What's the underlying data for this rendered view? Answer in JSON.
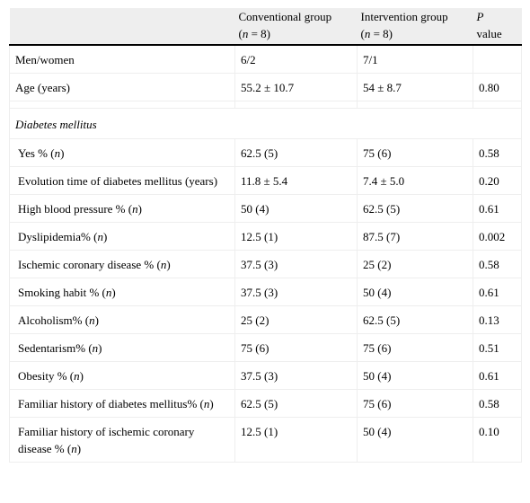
{
  "header": {
    "col2_line1": "Conventional group",
    "col2_n_pre": "(",
    "col2_n_var": "n",
    "col2_n_post": " = 8)",
    "col3_line1": "Intervention group",
    "col3_n_pre": "(",
    "col3_n_var": "n",
    "col3_n_post": " = 8)",
    "col4_p": "P",
    "col4_value": "value"
  },
  "rows": [
    {
      "label": "Men/women",
      "conv": "6/2",
      "interv": "7/1",
      "p": ""
    },
    {
      "label": "Age (years)",
      "conv": "55.2 ± 10.7",
      "interv": "54 ± 8.7",
      "p": "0.80"
    }
  ],
  "section_title": "Diabetes mellitus",
  "section_rows": [
    {
      "label": "Yes % (",
      "var": "n",
      "tail": ")",
      "conv": "62.5 (5)",
      "interv": "75 (6)",
      "p": "0.58"
    },
    {
      "label": "Evolution time of diabetes mellitus (years)",
      "var": "",
      "tail": "",
      "conv": "11.8 ± 5.4",
      "interv": "7.4 ± 5.0",
      "p": "0.20"
    },
    {
      "label": "High blood pressure % (",
      "var": "n",
      "tail": ")",
      "conv": "50 (4)",
      "interv": "62.5 (5)",
      "p": "0.61"
    },
    {
      "label": "Dyslipidemia% (",
      "var": "n",
      "tail": ")",
      "conv": "12.5 (1)",
      "interv": "87.5 (7)",
      "p": "0.002"
    },
    {
      "label": "Ischemic coronary disease % (",
      "var": "n",
      "tail": ")",
      "conv": "37.5 (3)",
      "interv": "25 (2)",
      "p": "0.58"
    },
    {
      "label": "Smoking habit % (",
      "var": "n",
      "tail": ")",
      "conv": "37.5 (3)",
      "interv": "50 (4)",
      "p": "0.61"
    },
    {
      "label": "Alcoholism% (",
      "var": "n",
      "tail": ")",
      "conv": "25 (2)",
      "interv": "62.5 (5)",
      "p": "0.13"
    },
    {
      "label": "Sedentarism% (",
      "var": "n",
      "tail": ")",
      "conv": "75 (6)",
      "interv": "75 (6)",
      "p": "0.51"
    },
    {
      "label": "Obesity % (",
      "var": "n",
      "tail": ")",
      "conv": "37.5 (3)",
      "interv": "50 (4)",
      "p": "0.61"
    },
    {
      "label": "Familiar history of diabetes mellitus% (",
      "var": "n",
      "tail": ")",
      "conv": "62.5 (5)",
      "interv": "75 (6)",
      "p": "0.58"
    },
    {
      "label": "Familiar history of ischemic coronary disease % (",
      "var": "n",
      "tail": ")",
      "conv": "12.5 (1)",
      "interv": "50 (4)",
      "p": "0.10"
    }
  ]
}
